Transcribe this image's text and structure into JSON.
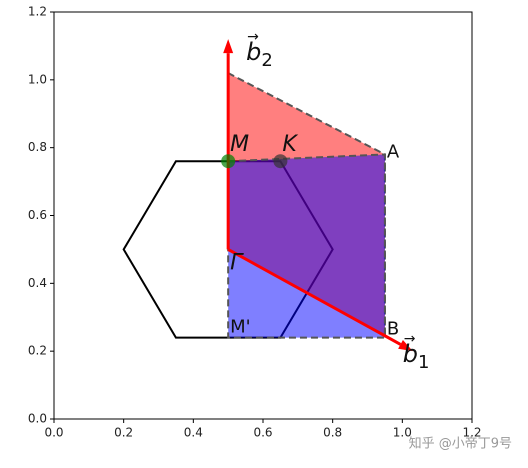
{
  "chart_data": {
    "type": "polygon",
    "xlim": [
      0,
      1.2
    ],
    "ylim": [
      0,
      1.2
    ],
    "xticks": [
      {
        "value": 0,
        "label": "0.0"
      },
      {
        "value": 0.2,
        "label": "0.2"
      },
      {
        "value": 0.4,
        "label": "0.4"
      },
      {
        "value": 0.6,
        "label": "0.6"
      },
      {
        "value": 0.8,
        "label": "0.8"
      },
      {
        "value": 1.0,
        "label": "1.0"
      },
      {
        "value": 1.2,
        "label": "1.2"
      }
    ],
    "yticks": [
      {
        "value": 0,
        "label": "0.0"
      },
      {
        "value": 0.2,
        "label": "0.2"
      },
      {
        "value": 0.4,
        "label": "0.4"
      },
      {
        "value": 0.6,
        "label": "0.6"
      },
      {
        "value": 0.8,
        "label": "0.8"
      },
      {
        "value": 1.0,
        "label": "1.0"
      },
      {
        "value": 1.2,
        "label": "1.2"
      }
    ],
    "polygons": [
      {
        "x": [
          0.2,
          0.35,
          0.65,
          0.8,
          0.65,
          0.35
        ],
        "y": [
          0.5,
          0.76,
          0.76,
          0.5,
          0.24,
          0.24
        ],
        "color": "#000000",
        "fill": "none"
      },
      {
        "x": [
          0.5,
          0.5,
          0.95,
          0.95
        ],
        "y": [
          0.5,
          1.02,
          0.78,
          0.245
        ],
        "color": "#555555",
        "fill": "#ff0000"
      },
      {
        "x": [
          0.5,
          0.95,
          0.95,
          0.5
        ],
        "y": [
          0.76,
          0.78,
          0.24,
          0.24
        ],
        "color": "#555555",
        "fill": "#0000ff"
      }
    ],
    "arrows": [
      {
        "x": [
          0.5,
          0.5
        ],
        "y": [
          0.5,
          1.12
        ],
        "color": "#ff0000",
        "label": "b",
        "subscript": "2"
      },
      {
        "x": [
          0.5,
          1.03
        ],
        "y": [
          0.5,
          0.2
        ],
        "color": "#ff0000",
        "label": "b",
        "subscript": "1"
      }
    ],
    "points": [
      {
        "label": "M",
        "x": 0.5,
        "y": 0.76,
        "color": "#008000"
      },
      {
        "label": "K",
        "x": 0.65,
        "y": 0.76,
        "color": "#333333"
      },
      {
        "label": "A",
        "x": 0.95,
        "y": 0.78
      },
      {
        "label": "Γ",
        "x": 0.5,
        "y": 0.5
      },
      {
        "label": "M'",
        "x": 0.5,
        "y": 0.24
      },
      {
        "label": "B",
        "x": 0.95,
        "y": 0.24
      }
    ]
  },
  "watermark": "知乎 @小帝丁9号"
}
